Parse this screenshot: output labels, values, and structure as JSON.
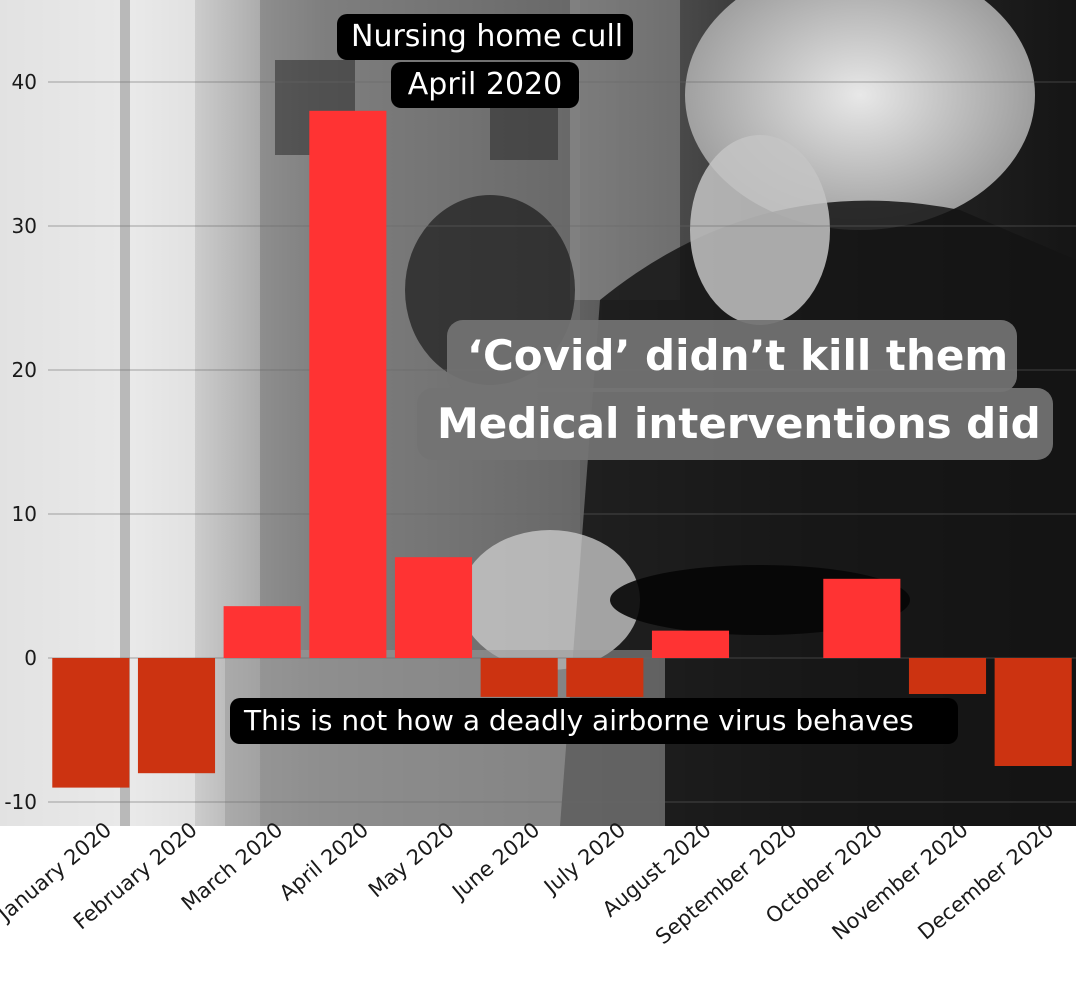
{
  "chart_data": {
    "type": "bar",
    "categories": [
      "January 2020",
      "February 2020",
      "March 2020",
      "April 2020",
      "May 2020",
      "June 2020",
      "July 2020",
      "August 2020",
      "September 2020",
      "October 2020",
      "November 2020",
      "December 2020"
    ],
    "values": [
      -9,
      -8,
      3.6,
      38,
      7,
      -2.7,
      -2.7,
      1.9,
      0,
      5.5,
      -2.5,
      -7.5
    ],
    "yticks": [
      -10,
      0,
      10,
      20,
      30,
      40
    ],
    "ylim": [
      -11.5,
      45
    ],
    "grid": true,
    "colors": {
      "positive": "#ff3333",
      "negative": "#cc3311"
    },
    "title": "",
    "xlabel": "",
    "ylabel": ""
  },
  "annotations": {
    "april_label_line1": "Nursing home cull",
    "april_label_line2": "April 2020",
    "headline_line1": "‘Covid’ didn’t kill them",
    "headline_line2": "Medical interventions did",
    "caption": "This is not how a deadly airborne virus behaves"
  }
}
